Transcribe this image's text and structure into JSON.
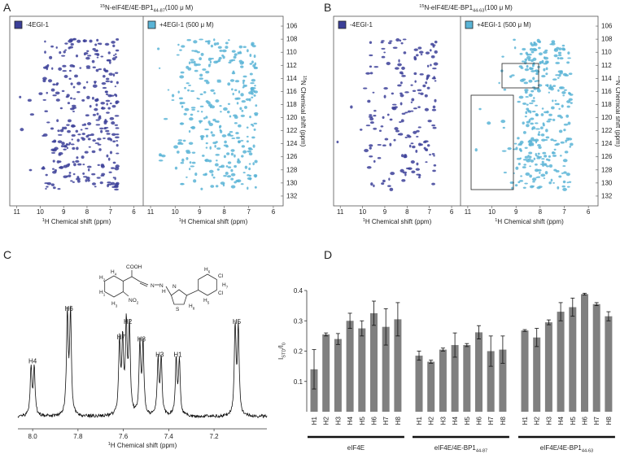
{
  "panel_labels": [
    "A",
    "B",
    "C",
    "D"
  ],
  "nmr": [
    {
      "title": [
        {
          "text": "15",
          "pos": "sup"
        },
        {
          "text": "N-eIF4E/4E-BP1"
        },
        {
          "text": "44-87",
          "pos": "sub"
        },
        {
          "text": "(100 μ M)"
        }
      ],
      "legend": [
        "-4EGI-1",
        "+4EGI-1 (500 μ M)"
      ],
      "colors": [
        "#3b3f98",
        "#5ab4d6"
      ],
      "xlim": [
        11.3,
        5.6
      ],
      "xticks": [
        11,
        10,
        9,
        8,
        7,
        6
      ],
      "ylim": [
        104.5,
        133.5
      ],
      "yticks": [
        106,
        108,
        110,
        112,
        114,
        116,
        118,
        120,
        122,
        124,
        126,
        128,
        130,
        132
      ],
      "xlabel": [
        {
          "text": "1",
          "pos": "sup"
        },
        {
          "text": "H Chemical shift (ppm)"
        }
      ],
      "ylabel": [
        {
          "text": "15",
          "pos": "sup"
        },
        {
          "text": "N Chemical shift (ppm)"
        }
      ]
    },
    {
      "title": [
        {
          "text": "15",
          "pos": "sup"
        },
        {
          "text": "N-eIF4E/4E-BP1"
        },
        {
          "text": "44-63",
          "pos": "sub"
        },
        {
          "text": "(100 μ M)"
        }
      ],
      "legend": [
        "-4EGI-1",
        "+4EGI-1 (500 μ M)"
      ],
      "colors": [
        "#3b3f98",
        "#5ab4d6"
      ],
      "xlim": [
        11.3,
        5.6
      ],
      "xticks": [
        11,
        10,
        9,
        8,
        7,
        6
      ],
      "ylim": [
        104.5,
        133.5
      ],
      "yticks": [
        106,
        108,
        110,
        112,
        114,
        116,
        118,
        120,
        122,
        124,
        126,
        128,
        130,
        132
      ],
      "xlabel": [
        {
          "text": "1",
          "pos": "sup"
        },
        {
          "text": "H Chemical shift (ppm)"
        }
      ],
      "ylabel": [
        {
          "text": "15",
          "pos": "sup"
        },
        {
          "text": "N Chemical shift (ppm)"
        }
      ]
    }
  ],
  "spectrum": {
    "xlim": [
      8.065,
      6.967
    ],
    "xticks": [
      {
        "value": 8,
        "label": "8.0"
      },
      7.8,
      7.6,
      7.4,
      7.2
    ],
    "xlabel": [
      {
        "text": "1",
        "pos": "sup"
      },
      {
        "text": "H Chemical shift (ppm)"
      }
    ],
    "peaks": [
      {
        "label": "H4",
        "ppm": 8.0,
        "height": 0.44
      },
      {
        "label": "H6",
        "ppm": 7.84,
        "height": 0.92
      },
      {
        "label": "H7",
        "ppm": 7.61,
        "height": 0.66
      },
      {
        "label": "H2",
        "ppm": 7.58,
        "height": 0.8
      },
      {
        "label": "H8",
        "ppm": 7.52,
        "height": 0.64
      },
      {
        "label": "H3",
        "ppm": 7.44,
        "height": 0.5
      },
      {
        "label": "H1",
        "ppm": 7.36,
        "height": 0.5
      },
      {
        "label": "H5",
        "ppm": 7.1,
        "height": 0.8
      }
    ],
    "molecule": [
      [
        {
          "text": "COOH"
        }
      ],
      [
        {
          "text": "N"
        }
      ],
      [
        {
          "text": "N"
        }
      ],
      [
        {
          "text": "H"
        }
      ],
      [
        {
          "text": "N"
        }
      ],
      [
        {
          "text": "S"
        }
      ],
      [
        {
          "text": "Cl"
        }
      ],
      [
        {
          "text": "Cl"
        }
      ],
      [
        {
          "text": "NO"
        },
        {
          "text": "2",
          "pos": "sub"
        }
      ],
      [
        {
          "text": "H"
        },
        {
          "text": "1",
          "pos": "sub"
        }
      ],
      [
        {
          "text": "H"
        },
        {
          "text": "2",
          "pos": "sub"
        }
      ],
      [
        {
          "text": "H"
        },
        {
          "text": "3",
          "pos": "sub"
        }
      ],
      [
        {
          "text": "H"
        },
        {
          "text": "4",
          "pos": "sub"
        }
      ],
      [
        {
          "text": "H"
        },
        {
          "text": "5",
          "pos": "sub"
        }
      ],
      [
        {
          "text": "H"
        },
        {
          "text": "6",
          "pos": "sub"
        }
      ],
      [
        {
          "text": "H"
        },
        {
          "text": "7",
          "pos": "sub"
        }
      ],
      [
        {
          "text": "H"
        },
        {
          "text": "8",
          "pos": "sub"
        }
      ]
    ]
  },
  "chart_data": {
    "type": "bar",
    "categories": [
      "H1",
      "H2",
      "H3",
      "H4",
      "H5",
      "H6",
      "H7",
      "H8"
    ],
    "color": "#808080",
    "ylim": [
      0,
      0.4
    ],
    "yticks": [
      0.1,
      0.2,
      0.3,
      0.4
    ],
    "ylabel": [
      {
        "text": "I"
      },
      {
        "text": "STD",
        "pos": "sub"
      },
      {
        "text": "/I"
      },
      {
        "text": "0",
        "pos": "sub"
      }
    ],
    "series": [
      {
        "name": [
          {
            "text": "eIF4E"
          }
        ],
        "values": [
          0.14,
          0.255,
          0.24,
          0.3,
          0.275,
          0.325,
          0.28,
          0.305
        ],
        "errors": [
          0.065,
          0.005,
          0.018,
          0.025,
          0.025,
          0.04,
          0.06,
          0.055
        ]
      },
      {
        "name": [
          {
            "text": "eIF4E/4E-BP1"
          },
          {
            "text": "44-87",
            "pos": "sub"
          }
        ],
        "values": [
          0.185,
          0.165,
          0.205,
          0.22,
          0.22,
          0.262,
          0.2,
          0.205
        ],
        "errors": [
          0.015,
          0.005,
          0.005,
          0.04,
          0.005,
          0.022,
          0.05,
          0.045
        ]
      },
      {
        "name": [
          {
            "text": "eIF4E/4E-BP1"
          },
          {
            "text": "44-63",
            "pos": "sub"
          }
        ],
        "values": [
          0.268,
          0.245,
          0.295,
          0.33,
          0.345,
          0.388,
          0.355,
          0.315
        ],
        "errors": [
          0.003,
          0.03,
          0.008,
          0.03,
          0.03,
          0.003,
          0.005,
          0.015
        ]
      }
    ]
  }
}
